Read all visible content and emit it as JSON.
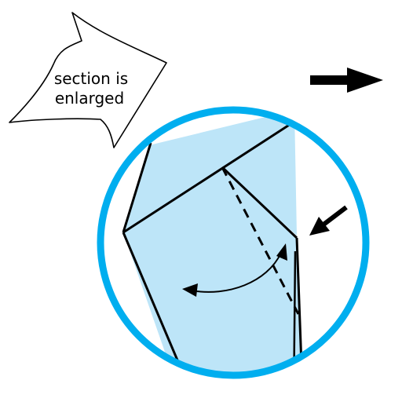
{
  "callout": {
    "line1": "section is",
    "line2": "enlarged"
  },
  "colors": {
    "ring": "#00AEEF",
    "paper": "#BDE5F8",
    "stroke": "#000000",
    "background": "#FFFFFF"
  },
  "icons": {
    "direction_arrow": "right-arrow-icon",
    "pointer_arrow": "diagonal-arrow-icon",
    "fold_arrow": "curved-double-arrow-icon"
  }
}
